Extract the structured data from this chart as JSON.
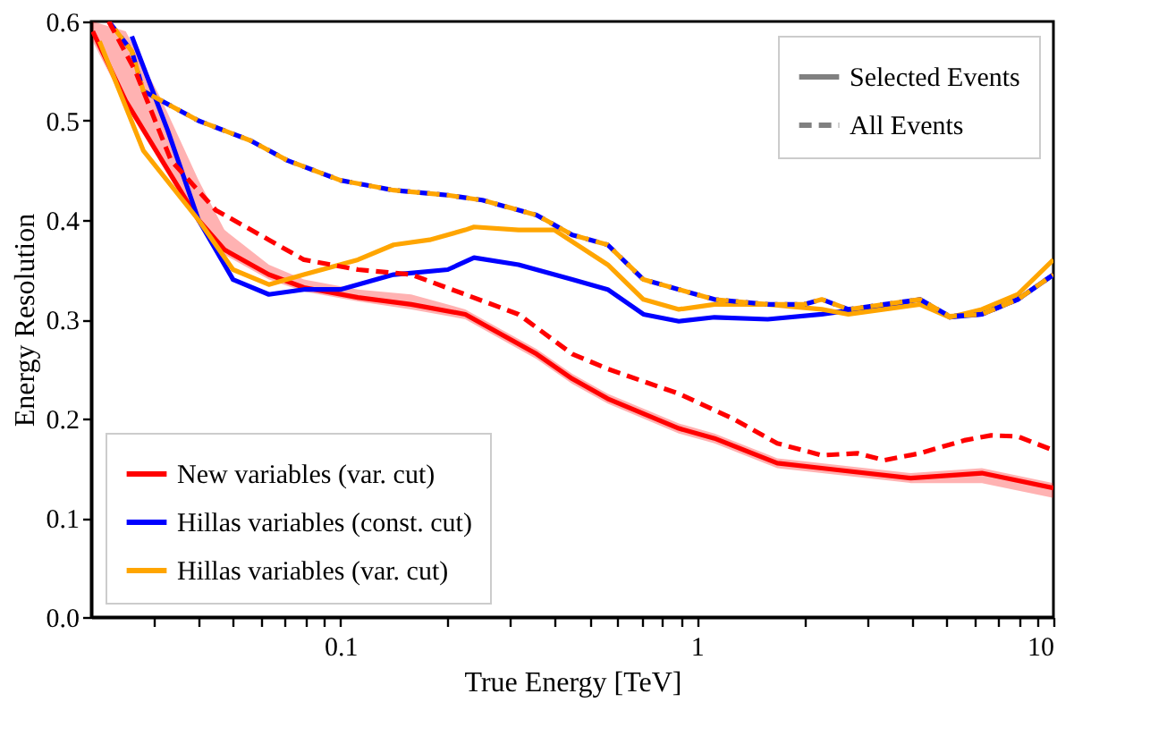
{
  "chart_data": {
    "type": "line",
    "xlabel": "True Energy [TeV]",
    "ylabel": "Energy Resolution",
    "log": "x",
    "xlim": [
      0.02,
      10
    ],
    "ylim": [
      0,
      0.6
    ],
    "xticks": [
      {
        "value": 0.03,
        "label": null
      },
      {
        "value": 0.04,
        "label": null
      },
      {
        "value": 0.05,
        "label": null
      },
      {
        "value": 0.06,
        "label": null
      },
      {
        "value": 0.07,
        "label": null
      },
      {
        "value": 0.08,
        "label": null
      },
      {
        "value": 0.09,
        "label": null
      },
      0.1,
      {
        "value": 0.2,
        "label": null
      },
      {
        "value": 0.3,
        "label": null
      },
      {
        "value": 0.4,
        "label": null
      },
      {
        "value": 0.5,
        "label": null
      },
      {
        "value": 0.6,
        "label": null
      },
      {
        "value": 0.7,
        "label": null
      },
      {
        "value": 0.8,
        "label": null
      },
      {
        "value": 0.9,
        "label": null
      },
      1,
      {
        "value": 2,
        "label": null
      },
      {
        "value": 3,
        "label": null
      },
      {
        "value": 4,
        "label": null
      },
      {
        "value": 5,
        "label": null
      },
      {
        "value": 6,
        "label": null
      },
      {
        "value": 7,
        "label": null
      },
      {
        "value": 8,
        "label": null
      },
      {
        "value": 9,
        "label": null
      },
      10
    ],
    "yticks": [
      {
        "value": 0,
        "label": "0.0"
      },
      0.1,
      0.2,
      0.3,
      0.4,
      0.5,
      0.6
    ],
    "grid": false,
    "legend": "bottom left",
    "annotations": [
      "Selected Events",
      "All Events"
    ],
    "series": [
      {
        "name": "New variables (var. cut)",
        "color": "#ff0000",
        "line_style": "solid",
        "x": [
          0.0202,
          0.025,
          0.0316,
          0.04,
          0.0473,
          0.063,
          0.079,
          0.112,
          0.158,
          0.224,
          0.251,
          0.355,
          0.447,
          0.562,
          0.89,
          1.12,
          1.68,
          2.24,
          3.98,
          6.3,
          10
        ],
        "values": [
          0.59,
          0.52,
          0.46,
          0.4,
          0.37,
          0.345,
          0.332,
          0.322,
          0.315,
          0.305,
          0.295,
          0.265,
          0.24,
          0.22,
          0.19,
          0.18,
          0.155,
          0.15,
          0.14,
          0.145,
          0.13
        ],
        "lower": [
          0.58,
          0.515,
          0.455,
          0.395,
          0.365,
          0.34,
          0.328,
          0.318,
          0.31,
          0.3,
          0.29,
          0.26,
          0.235,
          0.215,
          0.185,
          0.175,
          0.15,
          0.145,
          0.135,
          0.135,
          0.12
        ],
        "upper": [
          0.6,
          0.59,
          0.52,
          0.44,
          0.39,
          0.355,
          0.34,
          0.33,
          0.325,
          0.31,
          0.3,
          0.27,
          0.245,
          0.225,
          0.195,
          0.185,
          0.16,
          0.155,
          0.145,
          0.15,
          0.135
        ]
      },
      {
        "name": "Hillas variables (const. cut)",
        "color": "#0000ff",
        "line_style": "solid",
        "x": [
          0.026,
          0.0328,
          0.04,
          0.05,
          0.063,
          0.079,
          0.1,
          0.141,
          0.2,
          0.237,
          0.316,
          0.447,
          0.562,
          0.708,
          0.89,
          1.12,
          1.58,
          2.24,
          2.82,
          3.55,
          4.22,
          5.12,
          6.3,
          7.94,
          10
        ],
        "values": [
          0.585,
          0.49,
          0.4,
          0.34,
          0.325,
          0.33,
          0.33,
          0.345,
          0.35,
          0.362,
          0.355,
          0.34,
          0.33,
          0.305,
          0.298,
          0.302,
          0.3,
          0.305,
          0.31,
          0.315,
          0.32,
          0.302,
          0.305,
          0.32,
          0.345
        ]
      },
      {
        "name": "Hillas variables (var. cut)",
        "color": "#ffa500",
        "line_style": "solid",
        "x": [
          0.0211,
          0.028,
          0.04,
          0.05,
          0.063,
          0.079,
          0.112,
          0.141,
          0.178,
          0.224,
          0.237,
          0.316,
          0.398,
          0.562,
          0.708,
          0.89,
          1.12,
          1.58,
          2.24,
          2.66,
          3.35,
          4.22,
          5.12,
          6.3,
          7.94,
          10
        ],
        "values": [
          0.58,
          0.47,
          0.4,
          0.35,
          0.335,
          0.345,
          0.36,
          0.375,
          0.38,
          0.39,
          0.393,
          0.39,
          0.39,
          0.355,
          0.32,
          0.31,
          0.315,
          0.315,
          0.31,
          0.305,
          0.31,
          0.315,
          0.302,
          0.31,
          0.325,
          0.36
        ]
      },
      {
        "color": "#0000ff",
        "line_style": "dashed",
        "x": [
          0.0224,
          0.026,
          0.028,
          0.04,
          0.056,
          0.071,
          0.1,
          0.141,
          0.2,
          0.25,
          0.355,
          0.447,
          0.562,
          0.708,
          0.89,
          1.12,
          1.58,
          2.0,
          2.24,
          2.66,
          3.35,
          4.22,
          5.12,
          6.3,
          7.94,
          10
        ],
        "values": [
          0.6,
          0.57,
          0.53,
          0.5,
          0.48,
          0.46,
          0.44,
          0.43,
          0.425,
          0.42,
          0.405,
          0.385,
          0.375,
          0.34,
          0.33,
          0.32,
          0.315,
          0.315,
          0.32,
          0.31,
          0.315,
          0.32,
          0.303,
          0.305,
          0.32,
          0.345
        ]
      },
      {
        "color": "#ffa500",
        "line_style": "dashed",
        "x": [
          0.0224,
          0.026,
          0.028,
          0.04,
          0.056,
          0.071,
          0.1,
          0.141,
          0.2,
          0.25,
          0.355,
          0.447,
          0.562,
          0.708,
          0.89,
          1.12,
          1.58,
          2.0,
          2.24,
          2.66,
          3.35,
          4.22,
          5.12,
          6.3,
          7.94,
          10
        ],
        "values": [
          0.6,
          0.57,
          0.53,
          0.5,
          0.48,
          0.46,
          0.44,
          0.43,
          0.425,
          0.42,
          0.405,
          0.385,
          0.375,
          0.34,
          0.33,
          0.32,
          0.315,
          0.315,
          0.32,
          0.31,
          0.315,
          0.32,
          0.303,
          0.305,
          0.32,
          0.345
        ]
      },
      {
        "color": "#ff0000",
        "line_style": "dashed",
        "x": [
          0.0224,
          0.0266,
          0.0335,
          0.0447,
          0.063,
          0.079,
          0.112,
          0.158,
          0.224,
          0.316,
          0.447,
          0.562,
          0.89,
          1.26,
          1.68,
          2.24,
          2.82,
          3.35,
          4.22,
          5.62,
          6.68,
          7.94,
          10
        ],
        "values": [
          0.6,
          0.55,
          0.46,
          0.41,
          0.38,
          0.36,
          0.35,
          0.345,
          0.325,
          0.305,
          0.265,
          0.25,
          0.225,
          0.2,
          0.175,
          0.163,
          0.165,
          0.158,
          0.165,
          0.178,
          0.183,
          0.182,
          0.168
        ]
      }
    ]
  }
}
